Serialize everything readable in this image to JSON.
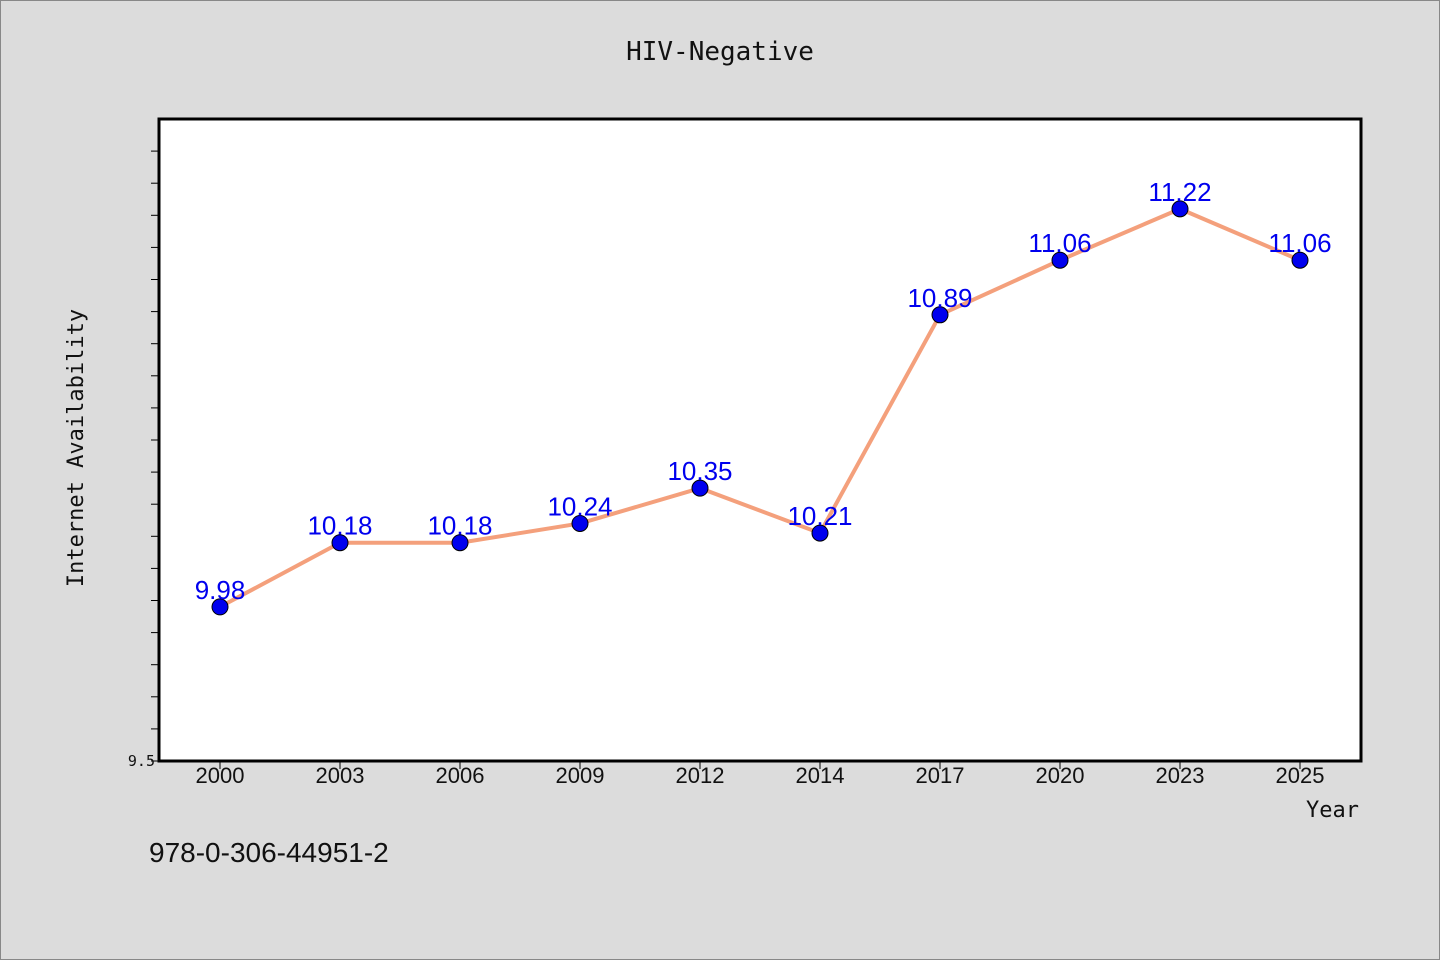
{
  "chart_data": {
    "type": "line",
    "title": "HIV-Negative",
    "xlabel": "Year",
    "ylabel": "Internet Availability",
    "categories": [
      "2000",
      "2003",
      "2006",
      "2009",
      "2012",
      "2014",
      "2017",
      "2020",
      "2023",
      "2025"
    ],
    "series": [
      {
        "values": [
          9.98,
          10.18,
          10.18,
          10.24,
          10.35,
          10.21,
          10.89,
          11.06,
          11.22,
          11.06
        ],
        "labels": [
          "9.98",
          "10.18",
          "10.18",
          "10.24",
          "10.35",
          "10.21",
          "10.89",
          "11.06",
          "11.22",
          "11.06"
        ]
      }
    ],
    "ylim": [
      9.5,
      11.5
    ],
    "y_tick_labels": [
      "9.5"
    ],
    "grid": false,
    "colors": {
      "line": "#f4a07c",
      "marker": "#0000ee",
      "data_label": "#0000ee",
      "plot_bg": "#ffffff",
      "page_bg": "#dcdcdc"
    }
  },
  "footnote": "978-0-306-44951-2"
}
